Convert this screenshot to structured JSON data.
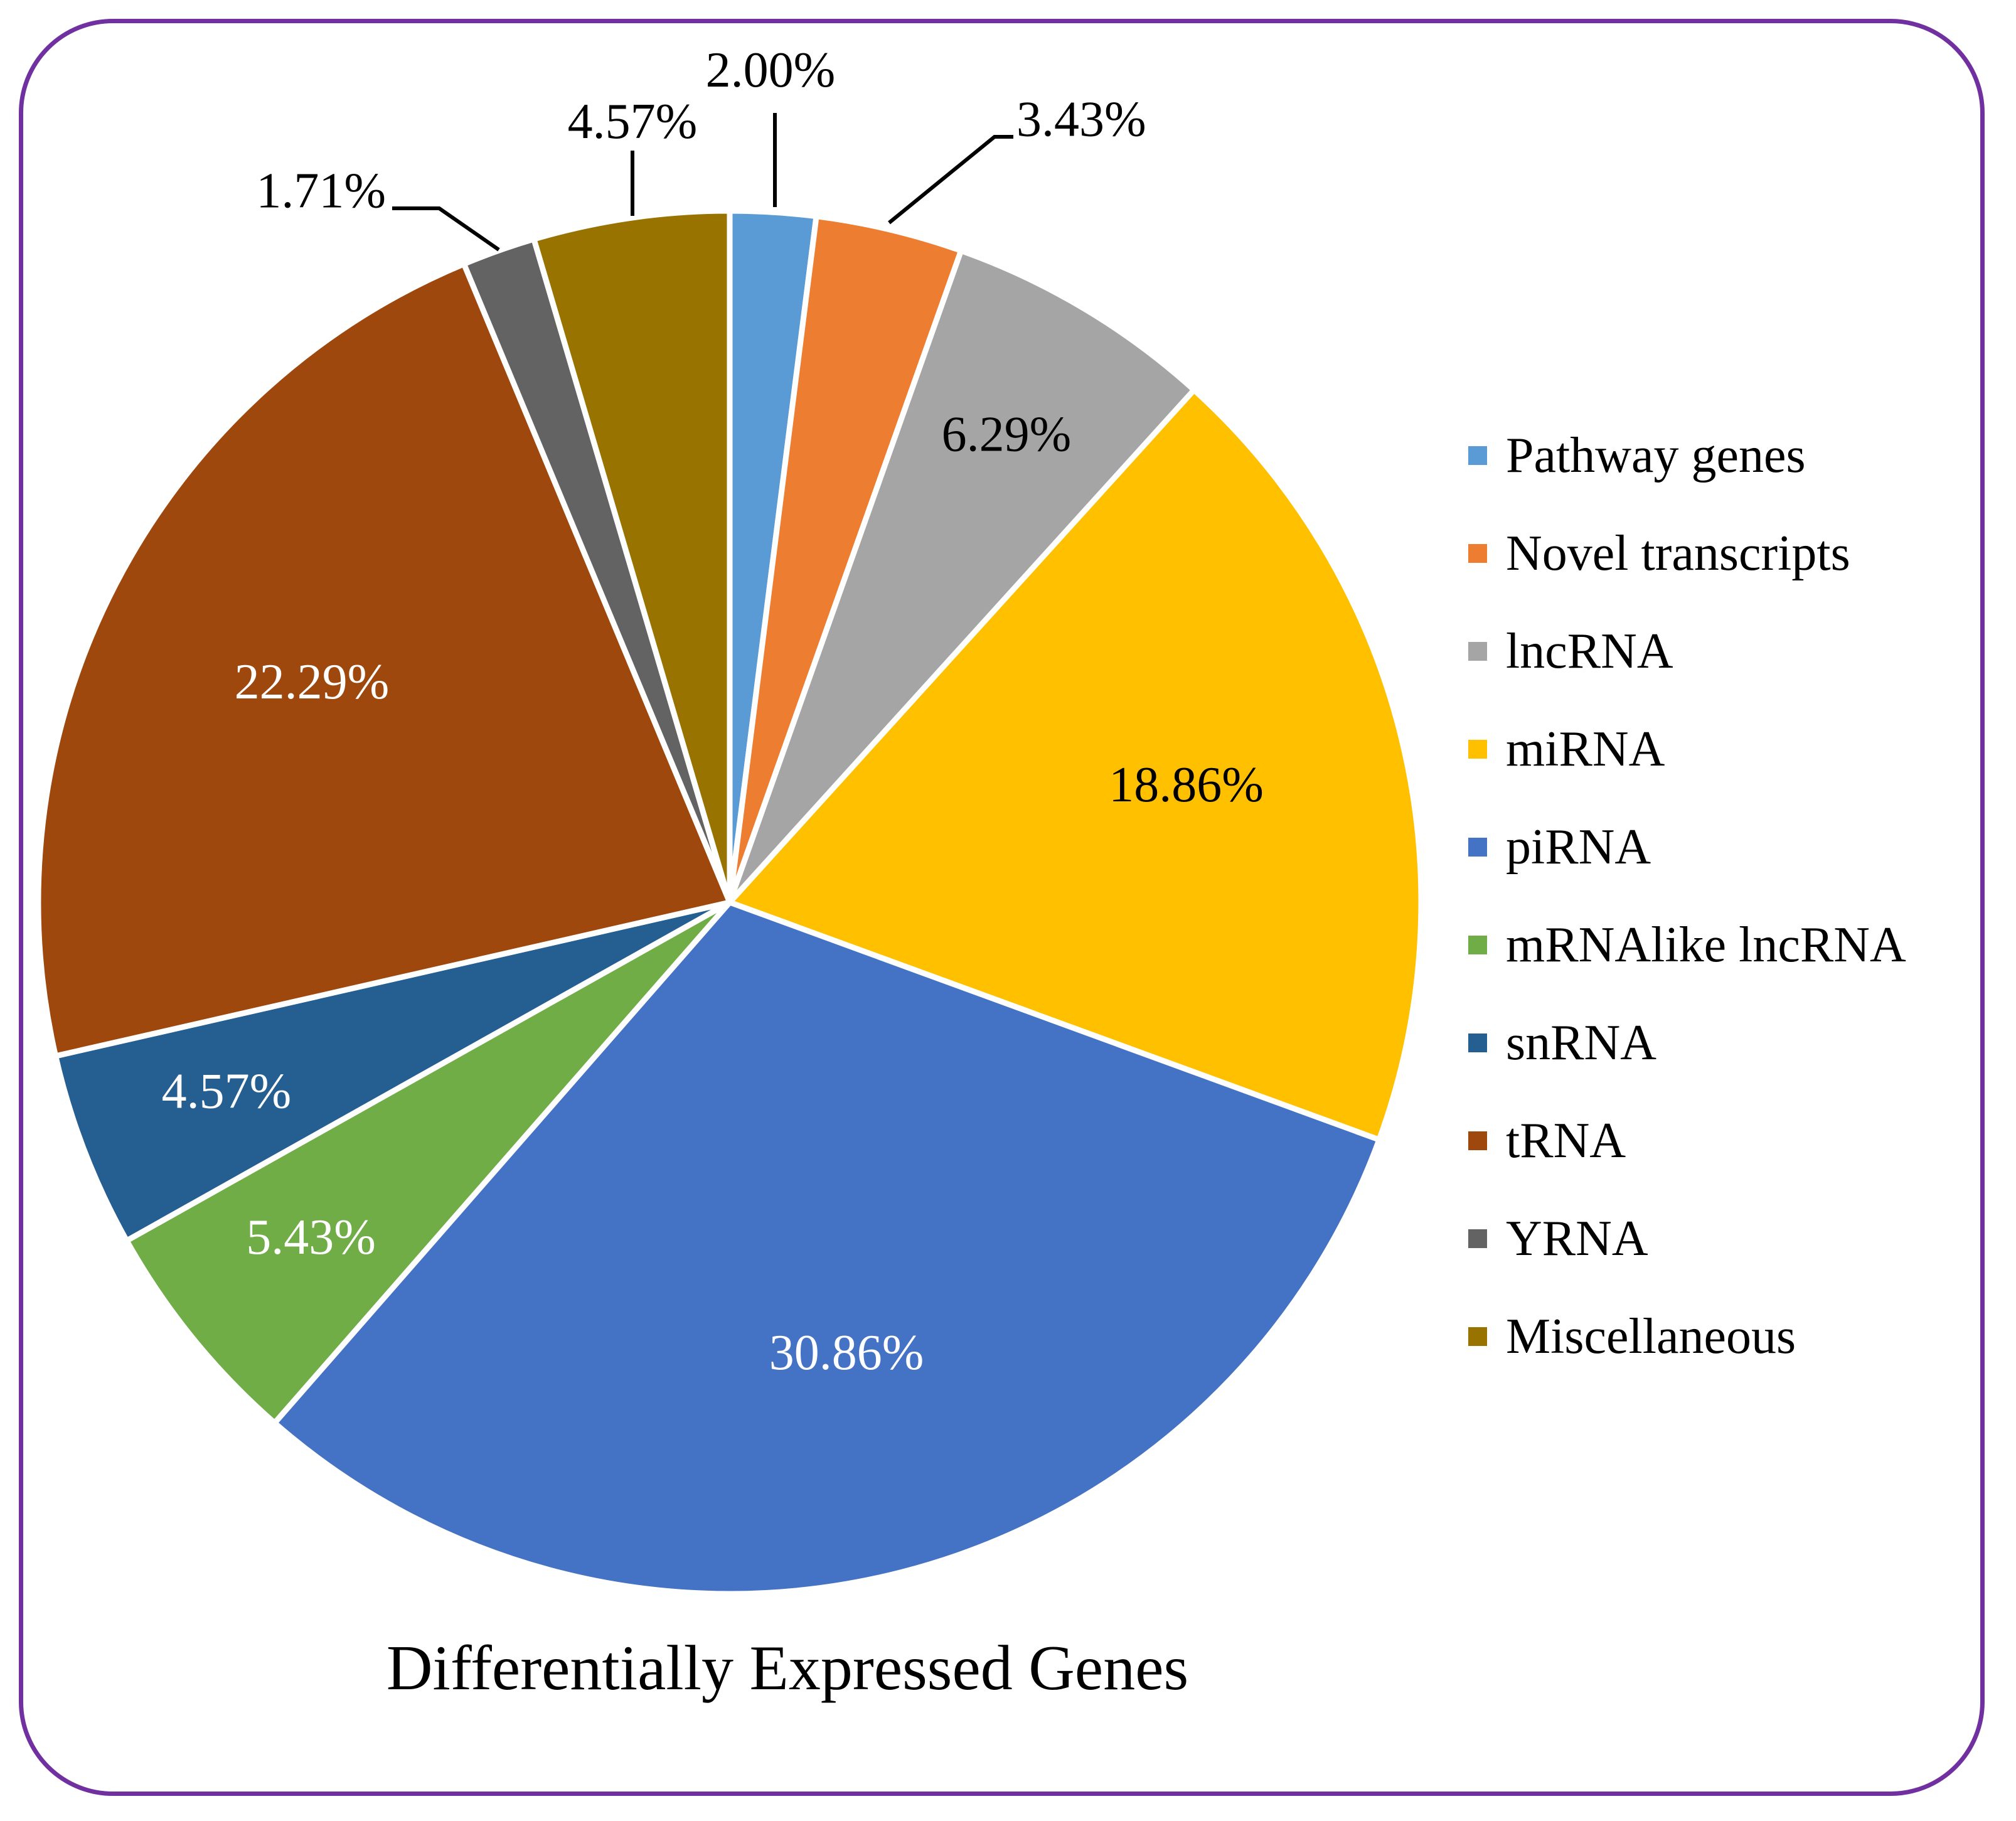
{
  "chart_data": {
    "type": "pie",
    "title": "Differentially Expressed Genes",
    "legend_position": "right",
    "slices": [
      {
        "label": "Pathway genes",
        "value": 2.0,
        "value_label": "2.00%",
        "color": "#5b9bd5",
        "label_color": "#000000",
        "label_placement": "outside"
      },
      {
        "label": "Novel transcripts",
        "value": 3.43,
        "value_label": "3.43%",
        "color": "#ed7d31",
        "label_color": "#000000",
        "label_placement": "outside"
      },
      {
        "label": "lncRNA",
        "value": 6.29,
        "value_label": "6.29%",
        "color": "#a5a5a5",
        "label_color": "#000000",
        "label_placement": "inside"
      },
      {
        "label": "miRNA",
        "value": 18.86,
        "value_label": "18.86%",
        "color": "#ffc000",
        "label_color": "#000000",
        "label_placement": "inside"
      },
      {
        "label": "piRNA",
        "value": 30.86,
        "value_label": "30.86%",
        "color": "#4472c4",
        "label_color": "#ffffff",
        "label_placement": "inside"
      },
      {
        "label": "mRNAlike lncRNA",
        "value": 5.43,
        "value_label": "5.43%",
        "color": "#70ad47",
        "label_color": "#ffffff",
        "label_placement": "inside"
      },
      {
        "label": "snRNA",
        "value": 4.57,
        "value_label": "4.57%",
        "color": "#255e91",
        "label_color": "#ffffff",
        "label_placement": "inside"
      },
      {
        "label": "tRNA",
        "value": 22.29,
        "value_label": "22.29%",
        "color": "#9e480e",
        "label_color": "#ffffff",
        "label_placement": "inside"
      },
      {
        "label": "YRNA",
        "value": 1.71,
        "value_label": "1.71%",
        "color": "#636363",
        "label_color": "#000000",
        "label_placement": "outside"
      },
      {
        "label": "Miscellaneous",
        "value": 4.57,
        "value_label": "4.57%",
        "color": "#997300",
        "label_color": "#000000",
        "label_placement": "outside"
      }
    ]
  },
  "frame_color": "#7030a0"
}
